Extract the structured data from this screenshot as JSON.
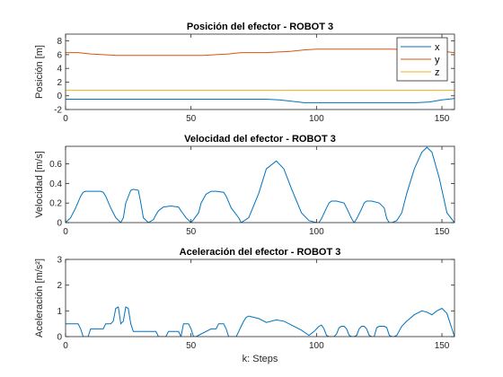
{
  "chart_data": [
    {
      "type": "line",
      "title": "Posición del efector - ROBOT 3",
      "ylabel": "Posición [m]",
      "xlabel": "",
      "xlim": [
        0,
        155
      ],
      "ylim": [
        -2,
        9
      ],
      "xticks": [
        0,
        50,
        100,
        150
      ],
      "yticks": [
        -2,
        0,
        2,
        4,
        6,
        8
      ],
      "legend": "top-right",
      "series": [
        {
          "name": "x",
          "color": "#0072BD",
          "x": [
            0,
            20,
            40,
            60,
            80,
            85,
            90,
            95,
            100,
            110,
            120,
            130,
            140,
            145,
            150,
            155
          ],
          "values": [
            -0.5,
            -0.5,
            -0.5,
            -0.5,
            -0.5,
            -0.6,
            -0.8,
            -1.0,
            -1.0,
            -1.0,
            -1.0,
            -1.0,
            -1.0,
            -0.9,
            -0.6,
            -0.4
          ]
        },
        {
          "name": "y",
          "color": "#D95319",
          "x": [
            0,
            5,
            10,
            15,
            20,
            30,
            40,
            55,
            60,
            65,
            70,
            75,
            80,
            85,
            90,
            95,
            100,
            110,
            120,
            130,
            140,
            150,
            155
          ],
          "values": [
            6.3,
            6.3,
            6.1,
            6.0,
            5.9,
            5.9,
            5.9,
            5.9,
            6.0,
            6.1,
            6.3,
            6.3,
            6.3,
            6.4,
            6.5,
            6.7,
            6.8,
            6.8,
            6.8,
            6.8,
            6.7,
            6.5,
            6.3
          ]
        },
        {
          "name": "z",
          "color": "#EDB120",
          "x": [
            0,
            30,
            60,
            90,
            120,
            155
          ],
          "values": [
            0.8,
            0.8,
            0.8,
            0.8,
            0.8,
            0.8
          ]
        }
      ]
    },
    {
      "type": "line",
      "title": "Velocidad del efector - ROBOT 3",
      "ylabel": "Velocidad [m/s]",
      "xlabel": "",
      "xlim": [
        0,
        155
      ],
      "ylim": [
        0,
        0.78
      ],
      "xticks": [
        0,
        50,
        100,
        150
      ],
      "yticks": [
        0,
        0.2,
        0.4,
        0.6
      ],
      "series": [
        {
          "name": "",
          "color": "#0072BD",
          "x": [
            0,
            2,
            4,
            6,
            7,
            8,
            14,
            15,
            16,
            18,
            20,
            22,
            23,
            24,
            26,
            27,
            29,
            30,
            31,
            33,
            35,
            36,
            37,
            39,
            42,
            45,
            46,
            48,
            50,
            51,
            53,
            54,
            56,
            58,
            59,
            60,
            63,
            64,
            66,
            69,
            70,
            73,
            77,
            80,
            84,
            87,
            90,
            94,
            97,
            100,
            101,
            102,
            104,
            105,
            106,
            108,
            111,
            112,
            114,
            115,
            116,
            118,
            119,
            120,
            122,
            125,
            127,
            128,
            129,
            130,
            132,
            134,
            136,
            139,
            142,
            144,
            146,
            149,
            152,
            155
          ],
          "values": [
            0,
            0.05,
            0.15,
            0.27,
            0.31,
            0.32,
            0.32,
            0.31,
            0.27,
            0.15,
            0.05,
            0,
            0.05,
            0.2,
            0.33,
            0.34,
            0.33,
            0.2,
            0.05,
            0,
            0.03,
            0.08,
            0.12,
            0.16,
            0.17,
            0.16,
            0.12,
            0.05,
            0,
            0.03,
            0.1,
            0.2,
            0.29,
            0.32,
            0.32,
            0.32,
            0.31,
            0.27,
            0.15,
            0.05,
            0,
            0.05,
            0.3,
            0.55,
            0.63,
            0.55,
            0.35,
            0.1,
            0.02,
            0,
            0,
            0.04,
            0.15,
            0.2,
            0.22,
            0.22,
            0.2,
            0.15,
            0.04,
            0,
            0.04,
            0.14,
            0.2,
            0.22,
            0.22,
            0.2,
            0.15,
            0.04,
            0,
            0,
            0.02,
            0.1,
            0.3,
            0.55,
            0.72,
            0.77,
            0.72,
            0.45,
            0.1,
            0
          ]
        }
      ]
    },
    {
      "type": "line",
      "title": "Aceleración del efector - ROBOT 3",
      "ylabel": "Aceleración [m/s²]",
      "xlabel": "k: Steps",
      "xlim": [
        0,
        155
      ],
      "ylim": [
        0,
        3
      ],
      "xticks": [
        0,
        50,
        100,
        150
      ],
      "yticks": [
        0,
        1,
        2,
        3
      ],
      "series": [
        {
          "name": "",
          "color": "#0072BD",
          "x": [
            0,
            1,
            5,
            6,
            7,
            8,
            9,
            10,
            14,
            15,
            16,
            17,
            18,
            19,
            20,
            21,
            22,
            23,
            24,
            25,
            26,
            27,
            28,
            29,
            30,
            35,
            36,
            37,
            38,
            39,
            40,
            41,
            45,
            46,
            47,
            48,
            49,
            50,
            51,
            52,
            58,
            59,
            60,
            61,
            62,
            63,
            64,
            65,
            67,
            68,
            69,
            70,
            71,
            72,
            73,
            75,
            77,
            80,
            84,
            87,
            90,
            94,
            97,
            99,
            100,
            101,
            102,
            103,
            104,
            105,
            106,
            107,
            108,
            109,
            110,
            111,
            112,
            113,
            114,
            115,
            116,
            117,
            118,
            119,
            120,
            121,
            122,
            123,
            124,
            125,
            126,
            127,
            128,
            129,
            130,
            131,
            132,
            134,
            136,
            139,
            142,
            144,
            146,
            148,
            150,
            152,
            154,
            155
          ],
          "values": [
            0.5,
            0.5,
            0.5,
            0.3,
            0,
            0,
            0,
            0.3,
            0.3,
            0.3,
            0.5,
            0.5,
            0.5,
            0.6,
            1.1,
            1.15,
            0.5,
            0.6,
            1.15,
            1.1,
            0.5,
            0.2,
            0.2,
            0.2,
            0.2,
            0.2,
            0.2,
            0,
            0,
            0,
            0,
            0.2,
            0.2,
            0,
            0.5,
            0.5,
            0.5,
            0.3,
            0,
            0,
            0.3,
            0.3,
            0.3,
            0.5,
            0.5,
            0.5,
            0.3,
            0,
            0,
            0,
            0.2,
            0.4,
            0.6,
            0.75,
            0.8,
            0.75,
            0.7,
            0.55,
            0.65,
            0.6,
            0.45,
            0.25,
            0.05,
            0.2,
            0.3,
            0.4,
            0.45,
            0.3,
            0.05,
            0,
            0,
            0,
            0.1,
            0.35,
            0.4,
            0.4,
            0.3,
            0.05,
            0,
            0,
            0.05,
            0.3,
            0.4,
            0.4,
            0.3,
            0.05,
            0,
            0,
            0.35,
            0.4,
            0.4,
            0.4,
            0.35,
            0.05,
            0,
            0,
            0.05,
            0.4,
            0.6,
            0.85,
            1.0,
            0.95,
            0.85,
            1.0,
            1.1,
            0.9,
            0.3,
            0
          ]
        }
      ]
    }
  ]
}
